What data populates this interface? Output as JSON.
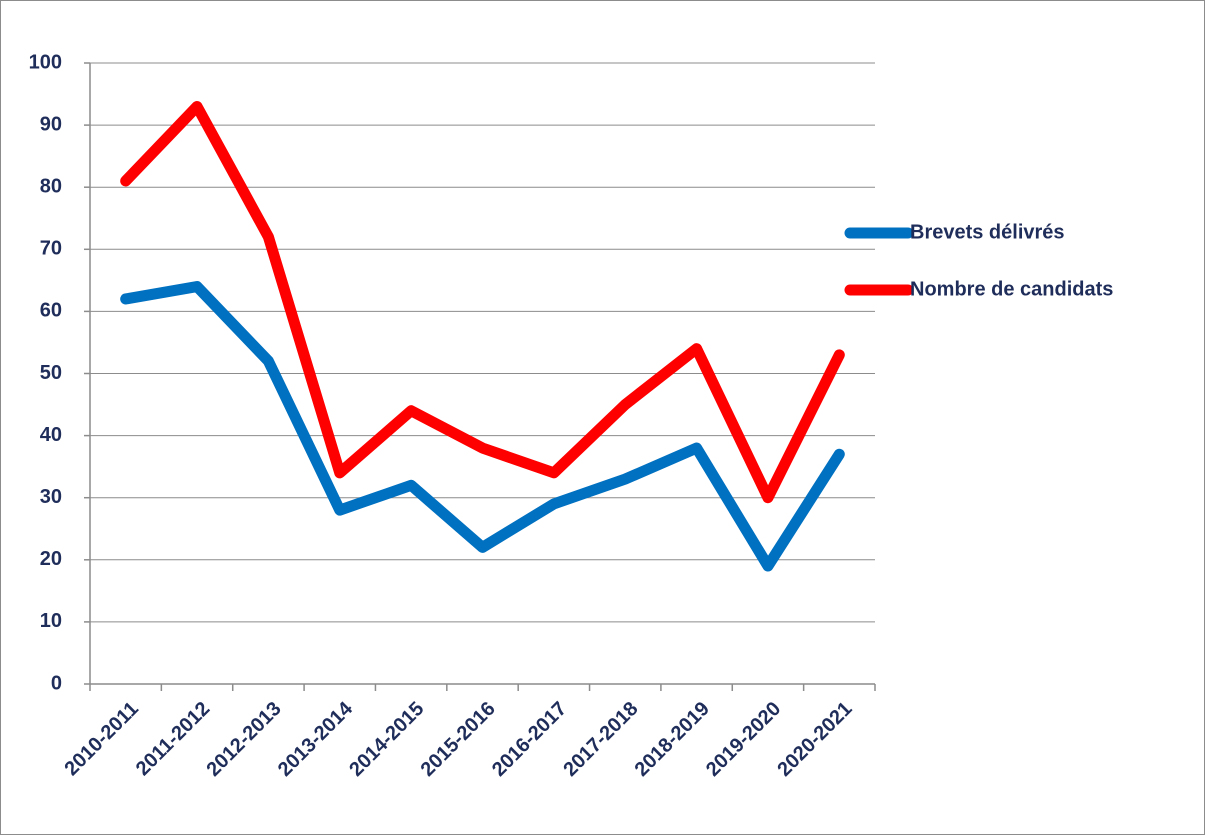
{
  "chart_data": {
    "type": "line",
    "categories": [
      "2010-2011",
      "2011-2012",
      "2012-2013",
      "2013-2014",
      "2014-2015",
      "2015-2016",
      "2016-2017",
      "2017-2018",
      "2018-2019",
      "2019-2020",
      "2020-2021"
    ],
    "series": [
      {
        "name": "Brevets délivrés",
        "color": "#0070c0",
        "values": [
          62,
          64,
          52,
          28,
          32,
          22,
          29,
          33,
          38,
          19,
          37
        ]
      },
      {
        "name": "Nombre de candidats",
        "color": "#ff0000",
        "values": [
          81,
          93,
          72,
          34,
          44,
          38,
          34,
          45,
          54,
          30,
          53
        ]
      }
    ],
    "ylim": [
      0,
      100
    ],
    "yticks": [
      0,
      10,
      20,
      30,
      40,
      50,
      60,
      70,
      80,
      90,
      100
    ],
    "grid": true,
    "legend": "right"
  }
}
